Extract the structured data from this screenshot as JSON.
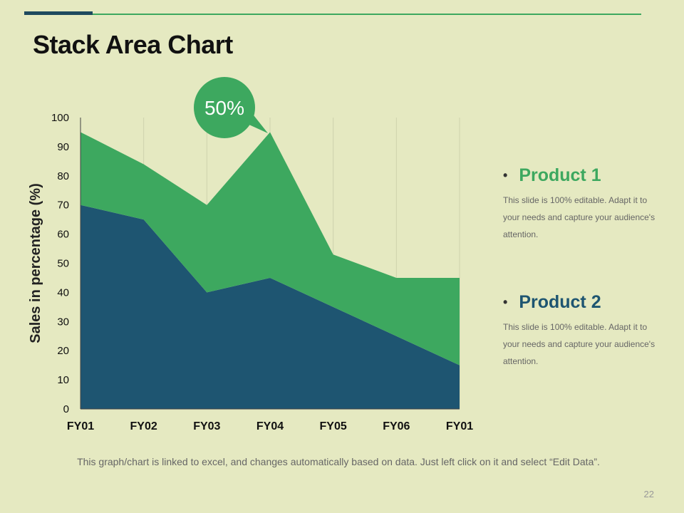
{
  "slide": {
    "title": "Stack Area Chart",
    "footer": "This graph/chart is linked to excel, and changes automatically based on data. Just left click on it and select “Edit Data”.",
    "page_number": "22",
    "colors": {
      "accent_dark": "#1e4a5f",
      "accent_green": "#3da85f",
      "background": "#e5e9c1"
    }
  },
  "legend": [
    {
      "name": "Product 1",
      "color": "#3da85f",
      "description": "This slide is 100% editable. Adapt it to your needs and capture your audience's attention."
    },
    {
      "name": "Product 2",
      "color": "#1e5571",
      "description": "This slide is 100% editable. Adapt it to your needs and capture your audience's attention."
    }
  ],
  "callout": {
    "text": "50%",
    "color": "#3da85f"
  },
  "chart_data": {
    "type": "area",
    "stacked": true,
    "categories": [
      "FY01",
      "FY02",
      "FY03",
      "FY04",
      "FY05",
      "FY06",
      "FY01"
    ],
    "series": [
      {
        "name": "Product 2",
        "color": "#1e5571",
        "values": [
          70,
          65,
          40,
          45,
          35,
          25,
          15
        ]
      },
      {
        "name": "Product 1",
        "color": "#3da85f",
        "values": [
          25,
          19,
          30,
          50,
          18,
          20,
          30
        ]
      }
    ],
    "ylabel": "Sales in percentage (%)",
    "xlabel": "",
    "ylim": [
      0,
      100
    ],
    "yticks": [
      0,
      10,
      20,
      30,
      40,
      50,
      60,
      70,
      80,
      90,
      100
    ],
    "grid": "vertical"
  }
}
